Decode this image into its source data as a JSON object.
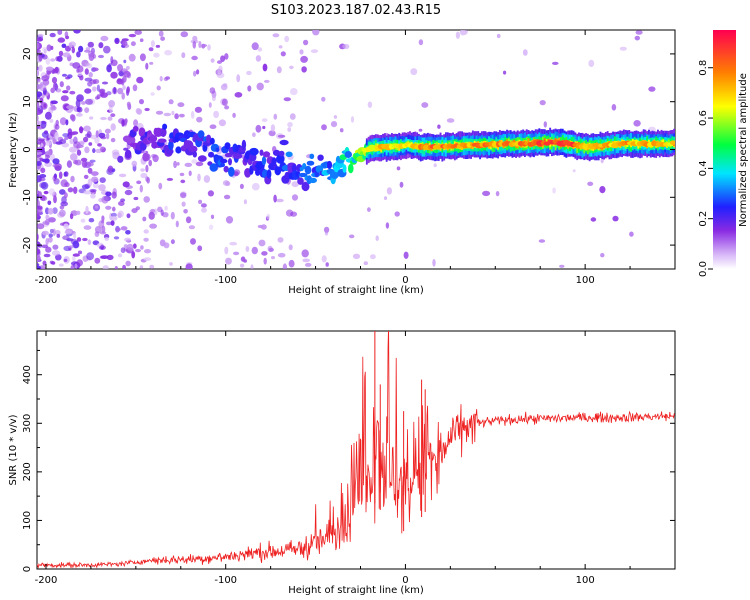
{
  "title": "S103.2023.187.02.43.R15",
  "chart_data": [
    {
      "type": "heatmap",
      "xlabel": "Height of straight line (km)",
      "ylabel": "Frequency (Hz)",
      "xlim": [
        -205,
        150
      ],
      "ylim": [
        -25,
        25
      ],
      "xticks": [
        -200,
        -100,
        0,
        100
      ],
      "yticks": [
        -20,
        -10,
        0,
        10,
        20
      ],
      "colorbar": {
        "label": "Normalized spectral amplitude",
        "range": [
          0.0,
          0.95
        ],
        "ticks": [
          0.0,
          0.2,
          0.4,
          0.6,
          0.8
        ],
        "colors": [
          "#ffffff",
          "#d8b8f8",
          "#8a2be2",
          "#2020ff",
          "#00e5ff",
          "#00ff40",
          "#ffff00",
          "#ff8000",
          "#ff0050"
        ]
      },
      "ridge": {
        "description": "narrow-band signal along line of frequency vs height",
        "points": [
          {
            "x": -155,
            "f": 2,
            "a": 0.2
          },
          {
            "x": -140,
            "f": 2,
            "a": 0.22
          },
          {
            "x": -120,
            "f": 1,
            "a": 0.28
          },
          {
            "x": -100,
            "f": -1,
            "a": 0.28
          },
          {
            "x": -85,
            "f": -3,
            "a": 0.26
          },
          {
            "x": -70,
            "f": -3,
            "a": 0.28
          },
          {
            "x": -55,
            "f": -5,
            "a": 0.3
          },
          {
            "x": -42,
            "f": -5,
            "a": 0.34
          },
          {
            "x": -30,
            "f": -2,
            "a": 0.5
          },
          {
            "x": -20,
            "f": 0.3,
            "a": 0.7
          },
          {
            "x": -5,
            "f": 0.6,
            "a": 0.72
          },
          {
            "x": 0,
            "f": 1,
            "a": 0.6
          },
          {
            "x": 10,
            "f": 0.5,
            "a": 0.8
          },
          {
            "x": 30,
            "f": 0.8,
            "a": 0.75
          },
          {
            "x": 60,
            "f": 1.2,
            "a": 0.8
          },
          {
            "x": 85,
            "f": 1.5,
            "a": 0.85
          },
          {
            "x": 100,
            "f": 0.5,
            "a": 0.8
          },
          {
            "x": 120,
            "f": 1.2,
            "a": 0.75
          },
          {
            "x": 150,
            "f": 1.2,
            "a": 0.7
          }
        ]
      }
    },
    {
      "type": "line",
      "xlabel": "Height of straight line (km)",
      "ylabel": "SNR (10 * v/v)",
      "xlim": [
        -205,
        150
      ],
      "ylim": [
        0,
        490
      ],
      "xticks": [
        -200,
        -100,
        0,
        100
      ],
      "yticks": [
        0,
        100,
        200,
        300,
        400
      ],
      "color": "#ee2020",
      "series": [
        {
          "name": "SNR",
          "x": [
            -205,
            -180,
            -160,
            -140,
            -120,
            -100,
            -80,
            -60,
            -45,
            -35,
            -25,
            -20,
            -18,
            -15,
            -12,
            -8,
            -5,
            0,
            5,
            10,
            12,
            15,
            20,
            25,
            30,
            40,
            50,
            60,
            80,
            100,
            120,
            150
          ],
          "y": [
            8,
            8,
            10,
            18,
            20,
            25,
            35,
            40,
            60,
            90,
            170,
            210,
            280,
            250,
            230,
            200,
            180,
            150,
            190,
            220,
            250,
            200,
            230,
            270,
            285,
            300,
            305,
            308,
            310,
            312,
            312,
            315
          ]
        }
      ],
      "spikes": [
        {
          "x": -17,
          "y": 490
        },
        {
          "x": -14,
          "y": 380
        },
        {
          "x": -1,
          "y": 325
        },
        {
          "x": 9,
          "y": 390
        },
        {
          "x": 11,
          "y": 370
        }
      ]
    }
  ]
}
